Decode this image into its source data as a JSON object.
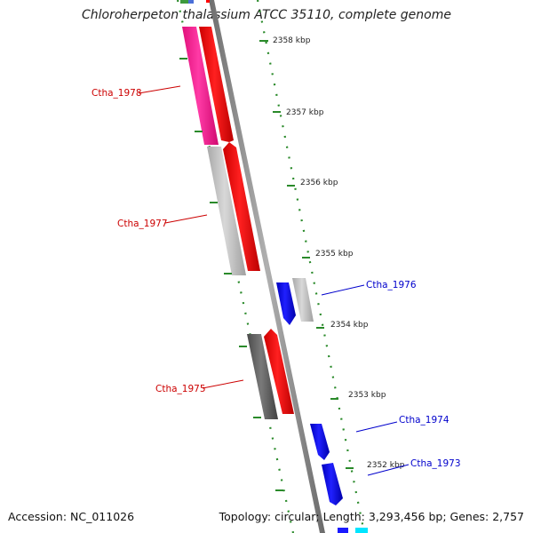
{
  "title": "Chloroherpeton thalassium ATCC 35110, complete genome",
  "footer": {
    "accession": "Accession: NC_011026",
    "summary": "Topology: circular; Length: 3,293,456 bp; Genes: 2,757"
  },
  "colors": {
    "backbone": "#8c8c8c",
    "tick": "#2a8a2a",
    "forward_gene": "#ff0000",
    "reverse_gene": "#0000ff",
    "label_forward": "#cc0000",
    "label_reverse": "#0000cc",
    "pink_feature": "#ff1493",
    "light_gray_feature": "#c0c0c0",
    "dark_gray_feature": "#606060",
    "cyan_feature": "#00e5ff"
  },
  "ticks": [
    {
      "label": "2358 kbp"
    },
    {
      "label": "2357 kbp"
    },
    {
      "label": "2356 kbp"
    },
    {
      "label": "2355 kbp"
    },
    {
      "label": "2354 kbp"
    },
    {
      "label": "2353 kbp"
    },
    {
      "label": "2352 kbp"
    }
  ],
  "genes": [
    {
      "label": "Ctha_1978",
      "strand": "forward"
    },
    {
      "label": "Ctha_1977",
      "strand": "forward"
    },
    {
      "label": "Ctha_1976",
      "strand": "reverse"
    },
    {
      "label": "Ctha_1975",
      "strand": "forward"
    },
    {
      "label": "Ctha_1974",
      "strand": "reverse"
    },
    {
      "label": "Ctha_1973",
      "strand": "reverse"
    }
  ]
}
